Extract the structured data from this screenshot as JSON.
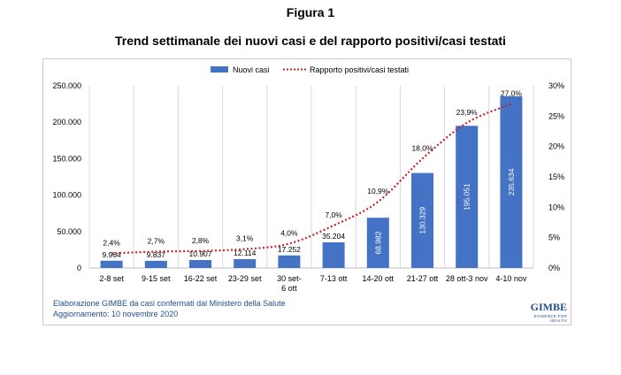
{
  "figure_label": "Figura 1",
  "title": "Trend settimanale dei nuovi casi e del rapporto positivi/casi testati",
  "footer": {
    "line1": "Elaborazione GIMBE da casi confermati dal Ministero della Salute",
    "line2": "Aggiornamento: 10 novembre 2020"
  },
  "logo": {
    "text": "GIMBE",
    "tagline": "EVIDENCE FOR HEALTH"
  },
  "colors": {
    "bars": "#4472c4",
    "line": "#c0272d",
    "bar_label_light": "#ffffff"
  },
  "chart_data": {
    "type": "bar",
    "categories": [
      "2-8 set",
      "9-15 set",
      "16-22 set",
      "23-29 set",
      "30 set-\n6 ott",
      "7-13 ott",
      "14-20 ott",
      "21-27 ott",
      "28 ott-3 nov",
      "4-10 nov"
    ],
    "series": [
      {
        "name": "Nuovi casi",
        "type": "bar",
        "axis": "left",
        "values": [
          9964,
          9837,
          10907,
          12114,
          17252,
          35204,
          68982,
          130329,
          195051,
          235634
        ],
        "labels": [
          "9.964",
          "9.837",
          "10.907",
          "12.114",
          "17.252",
          "35.204",
          "68.982",
          "130.329",
          "195.051",
          "235.634"
        ]
      },
      {
        "name": "Rapporto positivi/casi testati",
        "type": "line",
        "style": "dotted",
        "axis": "right",
        "values": [
          2.4,
          2.7,
          2.8,
          3.1,
          4.0,
          7.0,
          10.9,
          18.0,
          23.9,
          27.0
        ],
        "labels": [
          "2,4%",
          "2,7%",
          "2,8%",
          "3,1%",
          "4,0%",
          "7,0%",
          "10,9%",
          "18,0%",
          "23,9%",
          "27,0%"
        ]
      }
    ],
    "y_left": {
      "ylim": [
        0,
        250000
      ],
      "ticks": [
        "0",
        "50.000",
        "100.000",
        "150.000",
        "200.000",
        "250.000"
      ]
    },
    "y_right": {
      "ylim": [
        0,
        30
      ],
      "ticks": [
        "0%",
        "5%",
        "10%",
        "15%",
        "20%",
        "25%",
        "30%"
      ]
    },
    "grid": "vertical",
    "legend": "top-center"
  }
}
